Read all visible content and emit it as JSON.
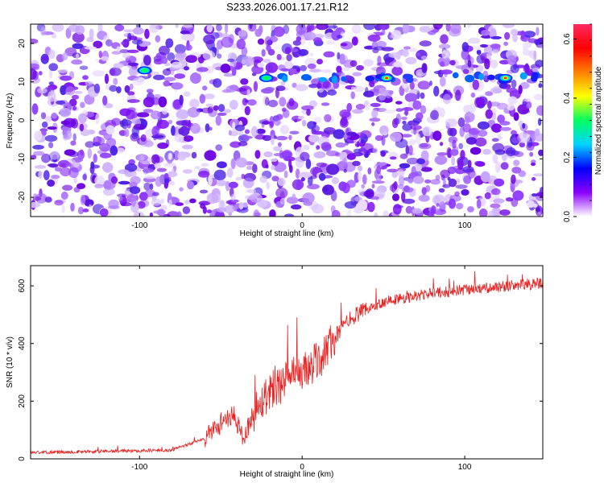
{
  "title": "S233.2026.001.17.21.R12",
  "chart_data": [
    {
      "type": "heatmap",
      "xlabel": "Height of straight line (km)",
      "ylabel": "Frequency (Hz)",
      "xlim": [
        -167,
        148
      ],
      "ylim": [
        -25,
        25
      ],
      "xticks": [
        -100,
        0,
        100
      ],
      "yticks": [
        -20,
        -10,
        0,
        10,
        20
      ],
      "colorbar": {
        "label": "Normalized spectral amplitude",
        "range": [
          0,
          0.65
        ],
        "ticks": [
          0,
          0.2,
          0.4,
          0.6
        ],
        "tick_labels": [
          "0.0",
          "0.2",
          "0.4",
          "0.6"
        ],
        "colors": [
          "#ffffff",
          "#8a00ff",
          "#0000ff",
          "#00d4ff",
          "#00ff60",
          "#ffff00",
          "#ff8000",
          "#ff0000",
          "#ff2a60"
        ]
      },
      "bright_spots": [
        {
          "x": -97,
          "y": 13,
          "amplitude": 0.25
        },
        {
          "x": -22,
          "y": 11,
          "amplitude": 0.3
        },
        {
          "x": 52,
          "y": 11,
          "amplitude": 0.45
        },
        {
          "x": 125,
          "y": 11,
          "amplitude": 0.45
        }
      ],
      "signal_band": {
        "frequency": 11,
        "x_range": [
          -30,
          145
        ]
      }
    },
    {
      "type": "line",
      "xlabel": "Height of straight line (km)",
      "ylabel": "SNR (10 * v/v)",
      "xlim": [
        -167,
        148
      ],
      "ylim": [
        0,
        670
      ],
      "xticks": [
        -100,
        0,
        100
      ],
      "yticks": [
        0,
        200,
        400,
        600
      ],
      "color": "#e82020",
      "trend": {
        "x": [
          -167,
          -80,
          -60,
          -50,
          -42,
          -36,
          -30,
          -20,
          -10,
          0,
          10,
          20,
          30,
          50,
          80,
          110,
          148
        ],
        "y": [
          22,
          30,
          70,
          130,
          150,
          70,
          160,
          240,
          270,
          300,
          340,
          420,
          490,
          545,
          575,
          590,
          610
        ]
      }
    }
  ]
}
